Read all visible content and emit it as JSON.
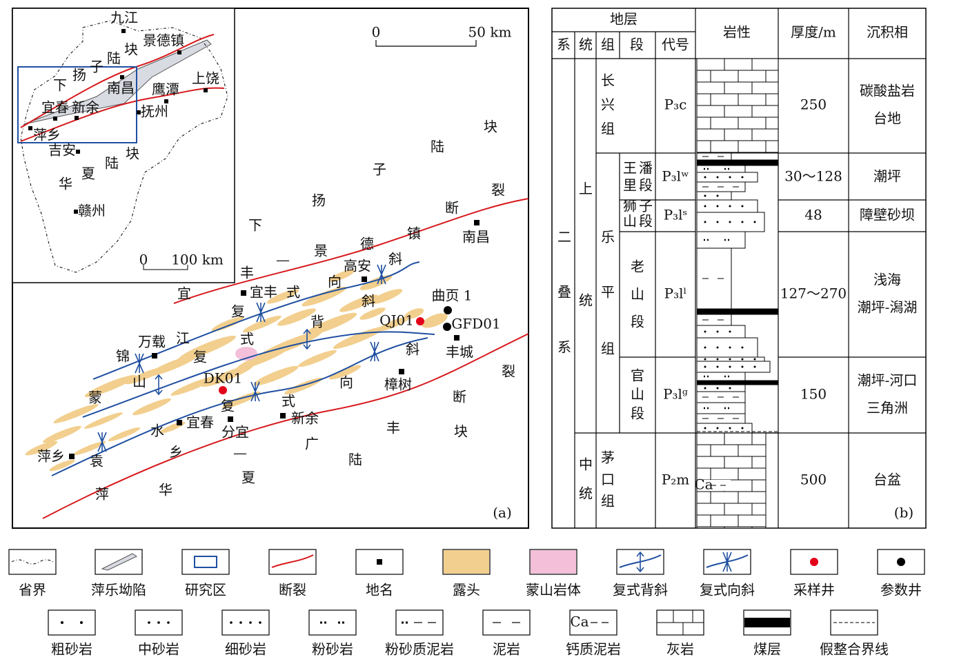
{
  "map_a": {
    "panel_label": "(a)",
    "scale_labels": [
      "0",
      "50 km"
    ],
    "places": [
      "宜丰",
      "高安",
      "万载",
      "丰城",
      "樟树",
      "新余",
      "分宜",
      "宜春",
      "萍乡",
      "南昌"
    ],
    "wells": [
      "曲页 1",
      "QJ01",
      "GFD01",
      "DK01"
    ],
    "structure_labels": [
      "下扬子陆块",
      "宜丰—景德镇断裂",
      "萍乡—广丰断裂",
      "华夏陆块",
      "锦江复式向斜",
      "蒙山复式背斜",
      "袁水复式向斜"
    ]
  },
  "inset": {
    "places": [
      "九江",
      "景德镇",
      "南昌",
      "鹰潭",
      "上饶",
      "宜春",
      "新余",
      "抚州",
      "萍乡",
      "吉安",
      "赣州"
    ],
    "block_labels": [
      "下扬子陆块",
      "华夏陆块"
    ],
    "scale_labels": [
      "0",
      "100 km"
    ]
  },
  "column_b": {
    "panel_label": "(b)",
    "header": {
      "strata": "地层",
      "system": "系",
      "series": "统",
      "formation": "组",
      "member": "段",
      "code": "代号",
      "lithology": "岩性",
      "thickness": "厚度/m",
      "facies": "沉积相"
    },
    "system": "二叠系",
    "series": [
      "上统",
      "中统"
    ],
    "formations": [
      "长兴组",
      "乐平组",
      "茅口组"
    ],
    "members": [
      "王潘里段",
      "狮子山段",
      "老山段",
      "官山段"
    ],
    "units": [
      {
        "code": "P₃c",
        "thickness": 250,
        "facies": [
          "碳酸盐岩",
          "台地"
        ]
      },
      {
        "code": "P₃lʷ",
        "thickness": "30～128",
        "facies": [
          "潮坪"
        ]
      },
      {
        "code": "P₃lˢ",
        "thickness": 48,
        "facies": [
          "障壁砂坝"
        ]
      },
      {
        "code": "P₃lˡ",
        "thickness": "127～270",
        "facies": [
          "浅海",
          "潮坪-潟湖"
        ]
      },
      {
        "code": "P₃lᵍ",
        "thickness": 150,
        "facies": [
          "潮坪-河口",
          "三角洲"
        ]
      },
      {
        "code": "P₂m",
        "thickness": 500,
        "facies": [
          "台盆"
        ]
      }
    ],
    "lithology_text": "Ca"
  },
  "legend": {
    "row1": [
      "省界",
      "萍乐坳陷",
      "研究区",
      "断裂",
      "地名",
      "露头",
      "蒙山岩体",
      "复式背斜",
      "复式向斜",
      "采样井",
      "参数井"
    ],
    "row2": [
      "粗砂岩",
      "中砂岩",
      "细砂岩",
      "粉砂岩",
      "粉砂质泥岩",
      "泥岩",
      "钙质泥岩",
      "灰岩",
      "煤层",
      "假整合界线"
    ],
    "symbol_text": "Ca"
  }
}
